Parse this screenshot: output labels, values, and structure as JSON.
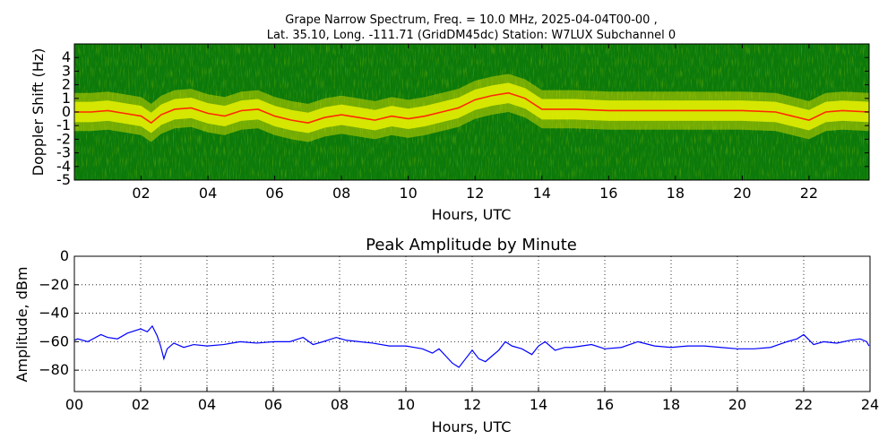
{
  "chart_data": [
    {
      "type": "heatmap",
      "title_line1": "Grape Narrow Spectrum, Freq. = 10.0 MHz, 2025-04-04T00-00 ,",
      "title_line2": "Lat.  35.10, Long. -111.71 (GridDM45dc) Station: W7LUX Subchannel 0",
      "xlabel": "Hours, UTC",
      "ylabel": "Doppler Shift (Hz)",
      "xlim": [
        0,
        23.8
      ],
      "ylim": [
        -5,
        5
      ],
      "xticks": [
        2,
        4,
        6,
        8,
        10,
        12,
        14,
        16,
        18,
        20,
        22
      ],
      "xtick_labels": [
        "02",
        "04",
        "06",
        "08",
        "10",
        "12",
        "14",
        "16",
        "18",
        "20",
        "22"
      ],
      "yticks": [
        -5,
        -4,
        -3,
        -2,
        -1,
        0,
        1,
        2,
        3,
        4
      ],
      "ytick_labels": [
        "-5",
        "-4",
        "-3",
        "-2",
        "-1",
        "0",
        "1",
        "2",
        "3",
        "4"
      ],
      "colors": {
        "background": "#0b7a0b",
        "mid": "#c8d400",
        "high": "#ffff00",
        "peak": "#ff2a00"
      },
      "doppler_trace": {
        "x": [
          0,
          0.5,
          1,
          1.5,
          2,
          2.3,
          2.6,
          3,
          3.5,
          4,
          4.5,
          5,
          5.5,
          6,
          6.5,
          7,
          7.5,
          8,
          8.5,
          9,
          9.5,
          10,
          10.5,
          11,
          11.5,
          12,
          12.5,
          13,
          13.5,
          14,
          15,
          16,
          17,
          18,
          19,
          20,
          21,
          21.5,
          22,
          22.5,
          23,
          23.8
        ],
        "y": [
          0,
          0,
          0.1,
          -0.1,
          -0.3,
          -0.8,
          -0.2,
          0.2,
          0.3,
          -0.1,
          -0.3,
          0.1,
          0.2,
          -0.3,
          -0.6,
          -0.8,
          -0.4,
          -0.2,
          -0.4,
          -0.6,
          -0.3,
          -0.5,
          -0.3,
          0,
          0.3,
          0.9,
          1.2,
          1.4,
          1.0,
          0.2,
          0.2,
          0.1,
          0.1,
          0.1,
          0.1,
          0.1,
          0.0,
          -0.3,
          -0.6,
          0.0,
          0.1,
          0.0
        ]
      }
    },
    {
      "type": "line",
      "title": "Peak Amplitude by Minute",
      "xlabel": "Hours, UTC",
      "ylabel": "Amplitude, dBm",
      "xlim": [
        0,
        24
      ],
      "ylim": [
        -95,
        0
      ],
      "grid": true,
      "xticks": [
        0,
        2,
        4,
        6,
        8,
        10,
        12,
        14,
        16,
        18,
        20,
        22,
        24
      ],
      "xtick_labels": [
        "00",
        "02",
        "04",
        "06",
        "08",
        "10",
        "12",
        "14",
        "16",
        "18",
        "20",
        "22",
        "24"
      ],
      "yticks": [
        0,
        -20,
        -40,
        -60,
        -80
      ],
      "ytick_labels": [
        "0",
        "−20",
        "−40",
        "−60",
        "−80"
      ],
      "line_color": "#0000ff",
      "series": [
        {
          "x": [
            0,
            0.1,
            0.4,
            0.8,
            1.0,
            1.3,
            1.6,
            2.0,
            2.2,
            2.35,
            2.5,
            2.6,
            2.7,
            2.8,
            3.0,
            3.3,
            3.6,
            4.0,
            4.5,
            5.0,
            5.5,
            6.0,
            6.5,
            6.9,
            7.2,
            7.5,
            7.9,
            8.2,
            8.6,
            9.0,
            9.5,
            10.0,
            10.5,
            10.8,
            11.0,
            11.2,
            11.4,
            11.6,
            11.8,
            12.0,
            12.2,
            12.4,
            12.6,
            12.8,
            13.0,
            13.2,
            13.5,
            13.8,
            14.0,
            14.2,
            14.5,
            14.8,
            15.0,
            15.3,
            15.6,
            16.0,
            16.5,
            17.0,
            17.5,
            18.0,
            18.5,
            19.0,
            19.5,
            20.0,
            20.5,
            21.0,
            21.5,
            21.8,
            22.0,
            22.3,
            22.6,
            23.0,
            23.4,
            23.7,
            23.9,
            23.97
          ],
          "y": [
            -59,
            -58,
            -60,
            -55,
            -57,
            -58,
            -54,
            -51,
            -53,
            -49,
            -56,
            -63,
            -72,
            -65,
            -61,
            -64,
            -62,
            -63,
            -62,
            -60,
            -61,
            -60,
            -60,
            -57,
            -62,
            -60,
            -57,
            -59,
            -60,
            -61,
            -63,
            -63,
            -65,
            -68,
            -65,
            -70,
            -75,
            -78,
            -72,
            -66,
            -72,
            -74,
            -70,
            -66,
            -60,
            -63,
            -65,
            -69,
            -63,
            -60,
            -66,
            -64,
            -64,
            -63,
            -62,
            -65,
            -64,
            -60,
            -63,
            -64,
            -63,
            -63,
            -64,
            -65,
            -65,
            -64,
            -60,
            -58,
            -55,
            -62,
            -60,
            -61,
            -59,
            -58,
            -60,
            -63
          ]
        }
      ]
    }
  ]
}
